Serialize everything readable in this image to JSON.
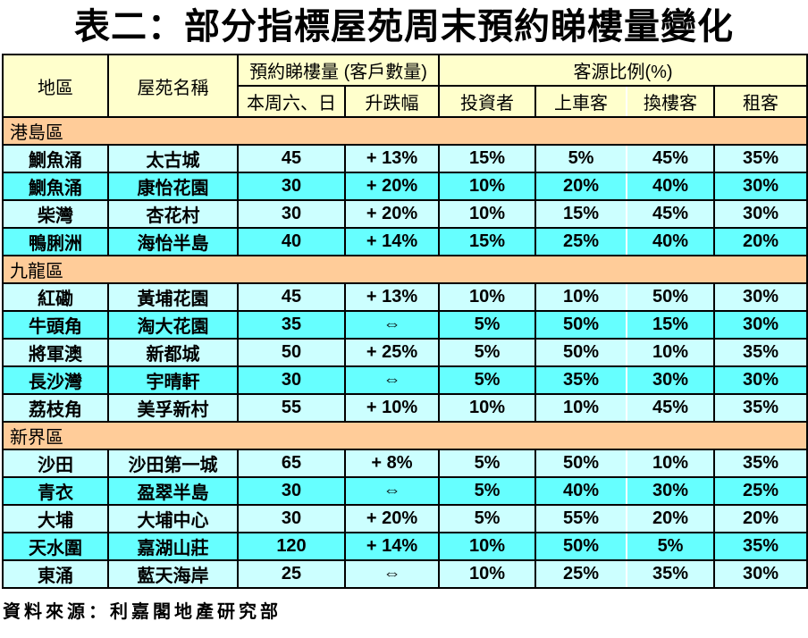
{
  "title": "表二：部分指標屋苑周末預約睇樓量變化",
  "source_note": "資料來源：利嘉閣地產研究部",
  "colors": {
    "header_bg": "#FFFFCC",
    "section_bg": "#FFCC99",
    "row_light": "#CCFFFF",
    "row_bright": "#66FFFF",
    "border": "#000000",
    "title_text": "#000000"
  },
  "chart_data": {
    "type": "table",
    "title": "表二：部分指標屋苑周末預約睇樓量變化",
    "column_groups": {
      "bookings": "預約睇樓量 (客戶數量)",
      "customer_ratio": "客源比例(%)"
    },
    "columns": [
      "地區",
      "屋苑名稱",
      "本周六、日",
      "升跌幅",
      "投資者",
      "上車客",
      "換樓客",
      "租客"
    ],
    "sections": [
      {
        "name": "港島區",
        "rows": [
          [
            "鰂魚涌",
            "太古城",
            "45",
            "+ 13%",
            "15%",
            "5%",
            "45%",
            "35%"
          ],
          [
            "鰂魚涌",
            "康怡花園",
            "30",
            "+ 20%",
            "10%",
            "20%",
            "40%",
            "30%"
          ],
          [
            "柴灣",
            "杏花村",
            "30",
            "+ 20%",
            "10%",
            "15%",
            "45%",
            "30%"
          ],
          [
            "鴨脷洲",
            "海怡半島",
            "40",
            "+ 14%",
            "15%",
            "25%",
            "40%",
            "20%"
          ]
        ]
      },
      {
        "name": "九龍區",
        "rows": [
          [
            "紅磡",
            "黃埔花園",
            "45",
            "+ 13%",
            "10%",
            "10%",
            "50%",
            "30%"
          ],
          [
            "牛頭角",
            "淘大花園",
            "35",
            "⇔",
            "5%",
            "50%",
            "15%",
            "30%"
          ],
          [
            "將軍澳",
            "新都城",
            "50",
            "+ 25%",
            "5%",
            "50%",
            "10%",
            "35%"
          ],
          [
            "長沙灣",
            "宇晴軒",
            "30",
            "⇔",
            "5%",
            "35%",
            "30%",
            "30%"
          ],
          [
            "荔枝角",
            "美孚新村",
            "55",
            "+ 10%",
            "10%",
            "10%",
            "45%",
            "35%"
          ]
        ]
      },
      {
        "name": "新界區",
        "rows": [
          [
            "沙田",
            "沙田第一城",
            "65",
            "+ 8%",
            "5%",
            "50%",
            "10%",
            "35%"
          ],
          [
            "青衣",
            "盈翠半島",
            "30",
            "⇔",
            "5%",
            "40%",
            "30%",
            "25%"
          ],
          [
            "大埔",
            "大埔中心",
            "30",
            "+ 20%",
            "5%",
            "55%",
            "20%",
            "20%"
          ],
          [
            "天水圍",
            "嘉湖山莊",
            "120",
            "+ 14%",
            "10%",
            "50%",
            "5%",
            "35%"
          ],
          [
            "東涌",
            "藍天海岸",
            "25",
            "⇔",
            "10%",
            "25%",
            "35%",
            "30%"
          ]
        ]
      }
    ]
  }
}
